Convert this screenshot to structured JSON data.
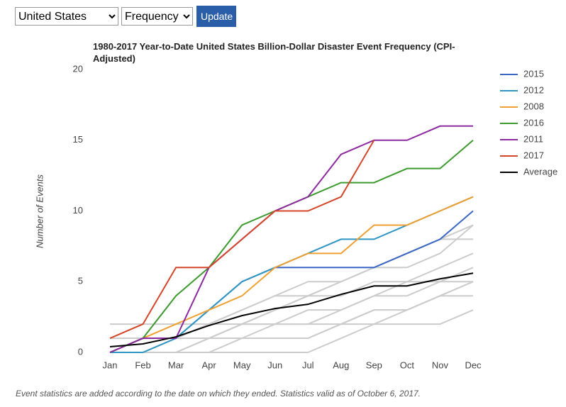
{
  "controls": {
    "region": "United States",
    "metric": "Frequency",
    "button": "Update"
  },
  "chart_data": {
    "type": "line",
    "title": "1980-2017 Year-to-Date United States Billion-Dollar Disaster Event Frequency (CPI-Adjusted)",
    "y_label": "Number of Events",
    "categories": [
      "Jan",
      "Feb",
      "Mar",
      "Apr",
      "May",
      "Jun",
      "Jul",
      "Aug",
      "Sep",
      "Oct",
      "Nov",
      "Dec"
    ],
    "ylim": [
      0,
      20
    ],
    "yticks": [
      0,
      5,
      10,
      15,
      20
    ],
    "grid": false,
    "legend": "right",
    "background_color": "#cccccc",
    "background_series": [
      [
        0,
        0,
        0,
        1,
        1,
        2,
        2,
        3,
        4,
        4,
        5,
        5
      ],
      [
        0,
        0,
        1,
        1,
        2,
        2,
        3,
        3,
        4,
        5,
        5,
        6
      ],
      [
        0,
        1,
        1,
        1,
        2,
        3,
        4,
        4,
        5,
        5,
        6,
        7
      ],
      [
        0,
        0,
        0,
        1,
        2,
        3,
        4,
        5,
        6,
        7,
        8,
        9
      ],
      [
        0,
        0,
        1,
        2,
        3,
        4,
        5,
        5,
        6,
        7,
        8,
        8
      ],
      [
        0,
        0,
        0,
        0,
        0,
        0,
        0,
        1,
        2,
        3,
        4,
        5
      ],
      [
        1,
        1,
        1,
        1,
        1,
        1,
        1,
        2,
        3,
        3,
        4,
        4
      ],
      [
        0,
        1,
        1,
        2,
        3,
        4,
        4,
        5,
        6,
        6,
        7,
        9
      ],
      [
        2,
        2,
        2,
        2,
        2,
        2,
        2,
        2,
        2,
        2,
        2,
        3
      ],
      [
        0,
        0,
        0,
        0,
        1,
        1,
        1,
        2,
        3,
        3,
        4,
        5
      ]
    ],
    "series": [
      {
        "name": "2015",
        "color": "#3a66c4",
        "values": [
          0,
          1,
          1,
          3,
          5,
          6,
          6,
          6,
          6,
          7,
          8,
          10
        ]
      },
      {
        "name": "2012",
        "color": "#2f96c4",
        "values": [
          0,
          0,
          1,
          3,
          5,
          6,
          7,
          8,
          8,
          9,
          10,
          11
        ]
      },
      {
        "name": "2008",
        "color": "#f0a030",
        "values": [
          0,
          1,
          2,
          3,
          4,
          6,
          7,
          7,
          9,
          9,
          10,
          11
        ]
      },
      {
        "name": "2016",
        "color": "#3c9a2e",
        "values": [
          0,
          1,
          4,
          6,
          9,
          10,
          11,
          12,
          12,
          13,
          13,
          15
        ]
      },
      {
        "name": "2011",
        "color": "#8e2aa0",
        "values": [
          0,
          1,
          1,
          6,
          8,
          10,
          11,
          14,
          15,
          15,
          16,
          16
        ]
      },
      {
        "name": "2017",
        "color": "#d4462a",
        "values": [
          1,
          2,
          6,
          6,
          8,
          10,
          10,
          11,
          15,
          null,
          null,
          null
        ]
      },
      {
        "name": "Average",
        "color": "#000000",
        "values": [
          0.4,
          0.6,
          1.1,
          1.9,
          2.6,
          3.1,
          3.4,
          4.1,
          4.7,
          4.7,
          5.2,
          5.6
        ]
      }
    ],
    "footnote": "Event statistics are added according to the date on which they ended. Statistics valid as of October 6, 2017."
  }
}
